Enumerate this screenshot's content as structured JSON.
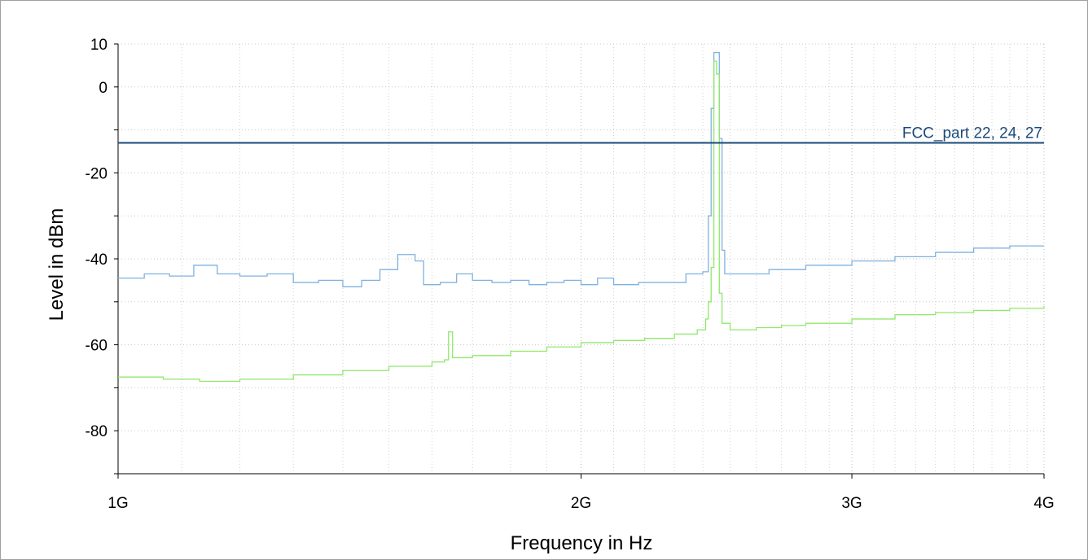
{
  "chart_data": {
    "type": "line",
    "title": "",
    "xlabel": "Frequency in Hz",
    "ylabel": "Level in dBm",
    "xscale": "log",
    "xlim": [
      1000000000,
      4000000000
    ],
    "ylim": [
      -90,
      10
    ],
    "x_ticks": [
      {
        "value": 1000000000,
        "label": "1G"
      },
      {
        "value": 2000000000,
        "label": "2G"
      },
      {
        "value": 3000000000,
        "label": "3G"
      },
      {
        "value": 4000000000,
        "label": "4G"
      }
    ],
    "y_ticks": [
      {
        "value": 10,
        "label": "10"
      },
      {
        "value": 0,
        "label": "0"
      },
      {
        "value": -20,
        "label": "-20"
      },
      {
        "value": -40,
        "label": "-40"
      },
      {
        "value": -60,
        "label": "-60"
      },
      {
        "value": -80,
        "label": "-80"
      }
    ],
    "grid": true,
    "limit_line": {
      "label": "FCC_part 22, 24, 27",
      "value": -13,
      "color": "#1a4a7a"
    },
    "series": [
      {
        "color": "#7fb2e0",
        "points": [
          [
            1000000000,
            -44.5
          ],
          [
            1040000000,
            -43.5
          ],
          [
            1080000000,
            -44.0
          ],
          [
            1120000000,
            -41.5
          ],
          [
            1160000000,
            -43.5
          ],
          [
            1200000000,
            -44.0
          ],
          [
            1250000000,
            -43.5
          ],
          [
            1300000000,
            -45.5
          ],
          [
            1350000000,
            -45.0
          ],
          [
            1400000000,
            -46.5
          ],
          [
            1440000000,
            -45.0
          ],
          [
            1480000000,
            -42.5
          ],
          [
            1520000000,
            -39.0
          ],
          [
            1560000000,
            -40.5
          ],
          [
            1580000000,
            -46.0
          ],
          [
            1620000000,
            -45.5
          ],
          [
            1660000000,
            -43.5
          ],
          [
            1700000000,
            -45.0
          ],
          [
            1750000000,
            -45.5
          ],
          [
            1800000000,
            -45.0
          ],
          [
            1850000000,
            -46.0
          ],
          [
            1900000000,
            -45.5
          ],
          [
            1950000000,
            -45.0
          ],
          [
            2000000000,
            -46.0
          ],
          [
            2050000000,
            -44.5
          ],
          [
            2100000000,
            -46.0
          ],
          [
            2180000000,
            -45.5
          ],
          [
            2260000000,
            -45.5
          ],
          [
            2340000000,
            -43.5
          ],
          [
            2400000000,
            -43.0
          ],
          [
            2420000000,
            -30.0
          ],
          [
            2430000000,
            -5.0
          ],
          [
            2440000000,
            8.0
          ],
          [
            2450000000,
            8.0
          ],
          [
            2460000000,
            -12.0
          ],
          [
            2470000000,
            -38.0
          ],
          [
            2480000000,
            -43.5
          ],
          [
            2550000000,
            -43.5
          ],
          [
            2650000000,
            -42.5
          ],
          [
            2800000000,
            -41.5
          ],
          [
            3000000000,
            -40.5
          ],
          [
            3200000000,
            -39.5
          ],
          [
            3400000000,
            -38.5
          ],
          [
            3600000000,
            -37.5
          ],
          [
            3800000000,
            -37.0
          ],
          [
            4000000000,
            -37.0
          ]
        ]
      },
      {
        "color": "#90e86a",
        "points": [
          [
            1000000000,
            -67.5
          ],
          [
            1070000000,
            -68.0
          ],
          [
            1130000000,
            -68.5
          ],
          [
            1200000000,
            -68.0
          ],
          [
            1300000000,
            -67.0
          ],
          [
            1400000000,
            -66.0
          ],
          [
            1500000000,
            -65.0
          ],
          [
            1600000000,
            -64.0
          ],
          [
            1630000000,
            -63.5
          ],
          [
            1640000000,
            -57.0
          ],
          [
            1650000000,
            -63.0
          ],
          [
            1700000000,
            -62.5
          ],
          [
            1800000000,
            -61.5
          ],
          [
            1900000000,
            -60.5
          ],
          [
            2000000000,
            -59.5
          ],
          [
            2100000000,
            -59.0
          ],
          [
            2200000000,
            -58.5
          ],
          [
            2300000000,
            -57.5
          ],
          [
            2380000000,
            -56.5
          ],
          [
            2410000000,
            -54.0
          ],
          [
            2420000000,
            -50.0
          ],
          [
            2430000000,
            -42.0
          ],
          [
            2440000000,
            6.0
          ],
          [
            2450000000,
            3.0
          ],
          [
            2460000000,
            -48.0
          ],
          [
            2470000000,
            -55.0
          ],
          [
            2500000000,
            -56.5
          ],
          [
            2600000000,
            -56.0
          ],
          [
            2700000000,
            -55.5
          ],
          [
            2800000000,
            -55.0
          ],
          [
            3000000000,
            -54.0
          ],
          [
            3200000000,
            -53.0
          ],
          [
            3400000000,
            -52.5
          ],
          [
            3600000000,
            -52.0
          ],
          [
            3800000000,
            -51.5
          ],
          [
            4000000000,
            -51.0
          ]
        ]
      }
    ]
  }
}
